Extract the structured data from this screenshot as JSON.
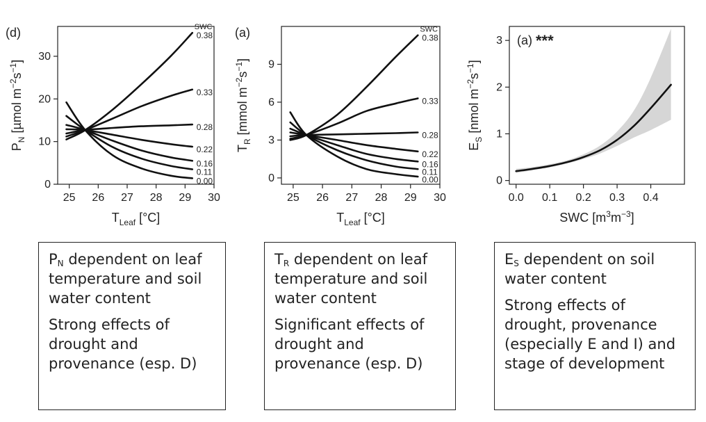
{
  "chart_data": [
    {
      "type": "line",
      "panel_label": "(d)",
      "ylabel": {
        "base": "P",
        "sub": "N",
        "text": " [µmol m",
        "sup1": "−2",
        "mid": "s",
        "sup2": "−1",
        "end": "]"
      },
      "xlabel": {
        "base": "T",
        "sub": "Leaf",
        "end": " [°C]"
      },
      "xlim": [
        24.6,
        30.0
      ],
      "ylim": [
        0,
        37
      ],
      "xticks": [
        "25",
        "26",
        "27",
        "28",
        "29",
        "30"
      ],
      "yticks": [
        "0",
        "10",
        "20",
        "30"
      ],
      "legend_title": "SWC",
      "series": [
        {
          "name": "0.38",
          "x": [
            24.9,
            25.55,
            26.5,
            27.5,
            28.5,
            29.25
          ],
          "y": [
            10.5,
            12.7,
            17.5,
            23.5,
            30.0,
            35.5
          ]
        },
        {
          "name": "0.33",
          "x": [
            24.9,
            25.55,
            26.5,
            27.5,
            28.5,
            29.25
          ],
          "y": [
            11.2,
            12.7,
            15.4,
            18.3,
            20.7,
            22.2
          ]
        },
        {
          "name": "0.28",
          "x": [
            24.9,
            25.55,
            26.5,
            27.5,
            28.5,
            29.25
          ],
          "y": [
            11.9,
            12.7,
            13.2,
            13.6,
            13.8,
            14.0
          ]
        },
        {
          "name": "0.22",
          "x": [
            24.9,
            25.55,
            26.5,
            27.5,
            28.5,
            29.25
          ],
          "y": [
            12.9,
            12.7,
            11.6,
            10.4,
            9.4,
            8.8
          ]
        },
        {
          "name": "0.16",
          "x": [
            24.9,
            25.55,
            26.5,
            27.5,
            28.5,
            29.25
          ],
          "y": [
            13.9,
            12.7,
            10.2,
            7.9,
            6.3,
            5.5
          ]
        },
        {
          "name": "0.11",
          "x": [
            24.9,
            25.55,
            26.5,
            27.5,
            28.5,
            29.25
          ],
          "y": [
            16.0,
            12.7,
            8.7,
            6.0,
            4.3,
            3.5
          ]
        },
        {
          "name": "0.00",
          "x": [
            24.9,
            25.55,
            26.5,
            27.5,
            28.5,
            29.25
          ],
          "y": [
            19.2,
            12.7,
            6.8,
            3.7,
            2.0,
            1.4
          ]
        }
      ]
    },
    {
      "type": "line",
      "panel_label": "(a)",
      "ylabel": {
        "base": "T",
        "sub": "R",
        "text": " [mmol m",
        "sup1": "−2",
        "mid": "s",
        "sup2": "−1",
        "end": "]"
      },
      "xlabel": {
        "base": "T",
        "sub": "Leaf",
        "end": " [°C]"
      },
      "xlim": [
        24.6,
        30.0
      ],
      "ylim": [
        -0.5,
        12.0
      ],
      "xticks": [
        "25",
        "26",
        "27",
        "28",
        "29",
        "30"
      ],
      "yticks": [
        "0",
        "3",
        "6",
        "9"
      ],
      "legend_title": "SWC",
      "series": [
        {
          "name": "0.38",
          "x": [
            24.9,
            25.45,
            26.5,
            27.5,
            28.5,
            29.25
          ],
          "y": [
            3.0,
            3.4,
            5.0,
            7.2,
            9.6,
            11.3
          ]
        },
        {
          "name": "0.33",
          "x": [
            24.9,
            25.45,
            26.5,
            27.5,
            28.5,
            29.25
          ],
          "y": [
            3.1,
            3.4,
            4.3,
            5.3,
            5.9,
            6.3
          ]
        },
        {
          "name": "0.28",
          "x": [
            24.9,
            25.45,
            26.5,
            27.5,
            28.5,
            29.25
          ],
          "y": [
            3.3,
            3.4,
            3.45,
            3.5,
            3.55,
            3.6
          ]
        },
        {
          "name": "0.22",
          "x": [
            24.9,
            25.45,
            26.5,
            27.5,
            28.5,
            29.25
          ],
          "y": [
            3.6,
            3.4,
            3.0,
            2.6,
            2.3,
            2.1
          ]
        },
        {
          "name": "0.16",
          "x": [
            24.9,
            25.45,
            26.5,
            27.5,
            28.5,
            29.25
          ],
          "y": [
            3.9,
            3.4,
            2.6,
            1.9,
            1.5,
            1.3
          ]
        },
        {
          "name": "0.11",
          "x": [
            24.9,
            25.45,
            26.5,
            27.5,
            28.5,
            29.25
          ],
          "y": [
            4.4,
            3.4,
            2.2,
            1.4,
            0.9,
            0.7
          ]
        },
        {
          "name": "0.00",
          "x": [
            24.9,
            25.45,
            26.5,
            27.5,
            28.5,
            29.25
          ],
          "y": [
            5.2,
            3.4,
            1.7,
            0.7,
            0.3,
            0.1
          ]
        }
      ]
    },
    {
      "type": "line",
      "panel_label": "(a)",
      "annotation": "***",
      "ylabel": {
        "base": "E",
        "sub": "S",
        "text": " [nmol m",
        "sup1": "−2",
        "mid": "s",
        "sup2": "−1",
        "end": "]"
      },
      "xlabel": {
        "base": "SWC [m",
        "sup1": "3",
        "mid": "m",
        "sup2": "−3",
        "end": "]"
      },
      "xlim": [
        -0.02,
        0.5
      ],
      "ylim": [
        -0.08,
        3.3
      ],
      "xticks": [
        "0.0",
        "0.1",
        "0.2",
        "0.3",
        "0.4"
      ],
      "xtick_values": [
        0.0,
        0.1,
        0.2,
        0.3,
        0.4
      ],
      "yticks": [
        "0",
        "1",
        "2",
        "3"
      ],
      "series": [
        {
          "name": "fit",
          "x": [
            0.0,
            0.05,
            0.1,
            0.15,
            0.2,
            0.25,
            0.3,
            0.35,
            0.4,
            0.46
          ],
          "y": [
            0.2,
            0.25,
            0.31,
            0.39,
            0.5,
            0.65,
            0.87,
            1.17,
            1.55,
            2.05
          ]
        }
      ],
      "band": {
        "x": [
          0.0,
          0.05,
          0.1,
          0.15,
          0.2,
          0.25,
          0.3,
          0.35,
          0.4,
          0.46
        ],
        "lower": [
          0.16,
          0.22,
          0.28,
          0.36,
          0.46,
          0.58,
          0.74,
          0.92,
          1.08,
          1.3
        ],
        "upper": [
          0.25,
          0.29,
          0.35,
          0.43,
          0.56,
          0.75,
          1.05,
          1.5,
          2.2,
          3.25
        ]
      },
      "band_color": "#d6d6d6"
    }
  ],
  "boxes": [
    {
      "sym": "P",
      "sub": "N",
      "line1": " dependent on leaf temperature and soil water content",
      "line2": "Strong effects of drought and provenance (esp. D)"
    },
    {
      "sym": "T",
      "sub": "R",
      "line1": " dependent on leaf temperature and soil water content",
      "line2": "Significant effects of drought and provenance (esp. D)"
    },
    {
      "sym": "E",
      "sub": "S",
      "line1": " dependent on soil water content",
      "line2": "Strong effects of drought, provenance (especially E and I) and stage of development"
    }
  ]
}
